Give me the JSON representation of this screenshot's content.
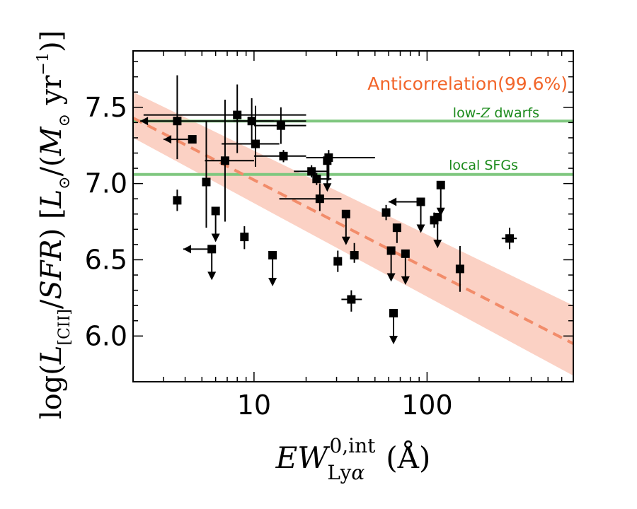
{
  "chart_data": {
    "type": "scatter",
    "title": "",
    "x_scale": "log",
    "xlim": [
      2,
      700
    ],
    "ylim": [
      5.7,
      7.87
    ],
    "xlabel": "EW_{Lyα}^{0,int} (Å)",
    "ylabel": "log(L_{[CII]}/SFR) [L_⊙/(M_⊙ yr^{-1})]",
    "xticks": [
      {
        "value": 10,
        "label": "10"
      },
      {
        "value": 100,
        "label": "100"
      }
    ],
    "yticks": [
      {
        "value": 6.0,
        "label": "6.0"
      },
      {
        "value": 6.5,
        "label": "6.5"
      },
      {
        "value": 7.0,
        "label": "7.0"
      },
      {
        "value": 7.5,
        "label": "7.5"
      }
    ],
    "grid": false,
    "fit": {
      "label": "Anticorrelation(99.6%)",
      "x_start": 2,
      "x_end": 700,
      "y_start": 7.43,
      "y_end": 5.95,
      "band_upper": [
        7.6,
        6.2
      ],
      "band_lower": [
        7.3,
        5.74
      ],
      "color": "#f28c6a",
      "band_color": "#f9c2b0"
    },
    "reference_lines": [
      {
        "label": "low-Z dwarfs",
        "label_parts": [
          "low-",
          "Z",
          " dwarfs"
        ],
        "y": 7.41,
        "color": "#7fc77f",
        "label_color": "#1a8a1a"
      },
      {
        "label": "local SFGs",
        "label_parts": [
          "local SFGs"
        ],
        "y": 7.06,
        "color": "#7fc77f",
        "label_color": "#1a8a1a"
      }
    ],
    "points": [
      {
        "x": 3.6,
        "y": 7.41,
        "xlo": 2.2,
        "xhi": 20,
        "yerr": [
          0.25,
          0.3
        ],
        "xlimit": "left",
        "ylimit": null
      },
      {
        "x": 4.4,
        "y": 7.29,
        "xlo": 3.0,
        "xhi": null,
        "yerr": [
          0,
          0
        ],
        "xlimit": "left",
        "ylimit": null
      },
      {
        "x": 3.6,
        "y": 6.89,
        "xlo": null,
        "xhi": null,
        "yerr": [
          0.07,
          0.07
        ],
        "xlimit": null,
        "ylimit": null
      },
      {
        "x": 5.3,
        "y": 7.01,
        "xlo": null,
        "xhi": null,
        "yerr": [
          0.3,
          0.4
        ],
        "xlimit": null,
        "ylimit": null
      },
      {
        "x": 6.0,
        "y": 6.82,
        "xlo": null,
        "xhi": null,
        "yerr": [
          0,
          0
        ],
        "xlimit": null,
        "ylimit": "upper"
      },
      {
        "x": 5.7,
        "y": 6.57,
        "xlo": 3.9,
        "xhi": null,
        "yerr": [
          0,
          0
        ],
        "xlimit": "left",
        "ylimit": "upper"
      },
      {
        "x": 6.8,
        "y": 7.15,
        "xlo": 5.2,
        "xhi": 10.0,
        "yerr": [
          0.4,
          0.4
        ],
        "xlimit": null,
        "ylimit": null
      },
      {
        "x": 8.0,
        "y": 7.45,
        "xlo": 2.3,
        "xhi": 20,
        "yerr": [
          0.25,
          0.2
        ],
        "xlimit": null,
        "ylimit": null
      },
      {
        "x": 8.8,
        "y": 6.65,
        "xlo": null,
        "xhi": null,
        "yerr": [
          0.08,
          0.07
        ],
        "xlimit": null,
        "ylimit": null
      },
      {
        "x": 9.7,
        "y": 7.41,
        "xlo": 7.6,
        "xhi": 13.0,
        "yerr": [
          0.15,
          0.15
        ],
        "xlimit": null,
        "ylimit": null
      },
      {
        "x": 10.2,
        "y": 7.26,
        "xlo": 6.5,
        "xhi": 14.0,
        "yerr": [
          0.15,
          0.25
        ],
        "xlimit": null,
        "ylimit": null
      },
      {
        "x": 14.3,
        "y": 7.38,
        "xlo": 10.0,
        "xhi": 20.0,
        "yerr": [
          0.12,
          0.12
        ],
        "xlimit": null,
        "ylimit": null
      },
      {
        "x": 14.8,
        "y": 7.18,
        "xlo": 10.0,
        "xhi": 20.0,
        "yerr": [
          0.04,
          0.04
        ],
        "xlimit": null,
        "ylimit": null
      },
      {
        "x": 12.8,
        "y": 6.53,
        "xlo": null,
        "xhi": null,
        "yerr": [
          0,
          0
        ],
        "xlimit": null,
        "ylimit": "upper"
      },
      {
        "x": 21.5,
        "y": 7.08,
        "xlo": 17.0,
        "xhi": 27.0,
        "yerr": [
          0.04,
          0.04
        ],
        "xlimit": null,
        "ylimit": null
      },
      {
        "x": 23.0,
        "y": 7.03,
        "xlo": null,
        "xhi": 28.0,
        "yerr": [
          0.04,
          0.04
        ],
        "xlimit": null,
        "ylimit": null
      },
      {
        "x": 24.0,
        "y": 6.9,
        "xlo": 14.0,
        "xhi": 32.0,
        "yerr": [
          0.08,
          0.1
        ],
        "xlimit": null,
        "ylimit": null
      },
      {
        "x": 27.0,
        "y": 7.17,
        "xlo": 20.0,
        "xhi": 50.0,
        "yerr": [
          0.15,
          0.05
        ],
        "xlimit": null,
        "ylimit": null
      },
      {
        "x": 26.5,
        "y": 7.15,
        "xlo": null,
        "xhi": null,
        "yerr": [
          0,
          0
        ],
        "xlimit": null,
        "ylimit": "upper"
      },
      {
        "x": 30.5,
        "y": 6.49,
        "xlo": null,
        "xhi": null,
        "yerr": [
          0.07,
          0.07
        ],
        "xlimit": null,
        "ylimit": null
      },
      {
        "x": 34.0,
        "y": 6.8,
        "xlo": null,
        "xhi": null,
        "yerr": [
          0,
          0
        ],
        "xlimit": null,
        "ylimit": "upper"
      },
      {
        "x": 36.5,
        "y": 6.24,
        "xlo": 32.0,
        "xhi": 42.0,
        "yerr": [
          0.08,
          0.06
        ],
        "xlimit": null,
        "ylimit": null
      },
      {
        "x": 38.0,
        "y": 6.53,
        "xlo": null,
        "xhi": null,
        "yerr": [
          0.05,
          0.08
        ],
        "xlimit": null,
        "ylimit": null
      },
      {
        "x": 58.0,
        "y": 6.81,
        "xlo": null,
        "xhi": null,
        "yerr": [
          0.05,
          0.05
        ],
        "xlimit": null,
        "ylimit": null
      },
      {
        "x": 62.0,
        "y": 6.56,
        "xlo": null,
        "xhi": null,
        "yerr": [
          0,
          0
        ],
        "xlimit": null,
        "ylimit": "upper"
      },
      {
        "x": 64.0,
        "y": 6.15,
        "xlo": null,
        "xhi": null,
        "yerr": [
          0,
          0
        ],
        "xlimit": null,
        "ylimit": "upper"
      },
      {
        "x": 67.0,
        "y": 6.71,
        "xlo": null,
        "xhi": null,
        "yerr": [
          0.1,
          0
        ],
        "xlimit": null,
        "ylimit": null
      },
      {
        "x": 75.0,
        "y": 6.54,
        "xlo": null,
        "xhi": null,
        "yerr": [
          0,
          0
        ],
        "xlimit": null,
        "ylimit": "upper"
      },
      {
        "x": 92.0,
        "y": 6.88,
        "xlo": 60.0,
        "xhi": null,
        "yerr": [
          0,
          0
        ],
        "xlimit": "left",
        "ylimit": "upper"
      },
      {
        "x": 110.0,
        "y": 6.76,
        "xlo": null,
        "xhi": null,
        "yerr": [
          0.05,
          0.05
        ],
        "xlimit": null,
        "ylimit": null
      },
      {
        "x": 115.0,
        "y": 6.78,
        "xlo": null,
        "xhi": null,
        "yerr": [
          0,
          0
        ],
        "xlimit": null,
        "ylimit": "upper"
      },
      {
        "x": 120.0,
        "y": 6.99,
        "xlo": null,
        "xhi": null,
        "yerr": [
          0,
          0
        ],
        "xlimit": null,
        "ylimit": "upper"
      },
      {
        "x": 155.0,
        "y": 6.44,
        "xlo": null,
        "xhi": null,
        "yerr": [
          0.15,
          0.15
        ],
        "xlimit": null,
        "ylimit": null
      },
      {
        "x": 300.0,
        "y": 6.64,
        "xlo": 270.0,
        "xhi": 330.0,
        "yerr": [
          0.07,
          0.07
        ],
        "xlimit": null,
        "ylimit": null
      }
    ]
  }
}
